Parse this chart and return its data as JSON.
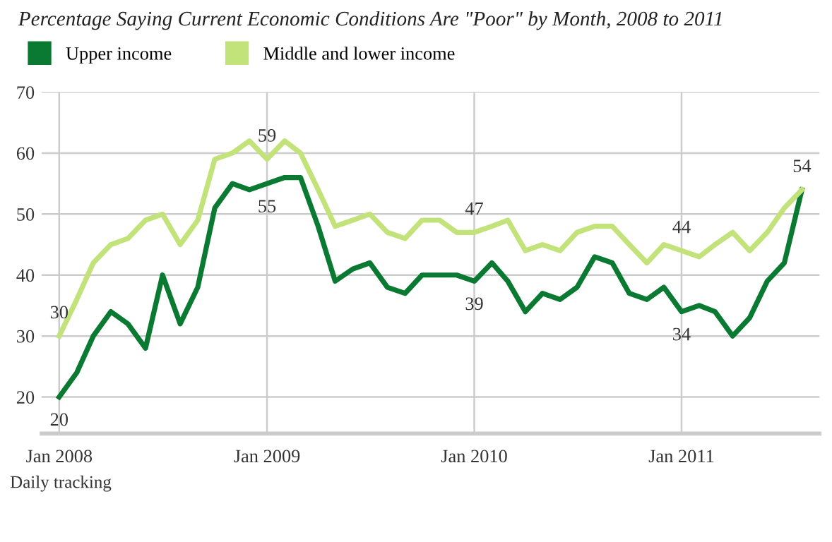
{
  "chart_data": {
    "type": "line",
    "title": "Percentage Saying Current Economic Conditions Are \"Poor\" by Month, 2008 to 2011",
    "x": [
      "2008-01",
      "2008-02",
      "2008-03",
      "2008-04",
      "2008-05",
      "2008-06",
      "2008-07",
      "2008-08",
      "2008-09",
      "2008-10",
      "2008-11",
      "2008-12",
      "2009-01",
      "2009-02",
      "2009-03",
      "2009-04",
      "2009-05",
      "2009-06",
      "2009-07",
      "2009-08",
      "2009-09",
      "2009-10",
      "2009-11",
      "2009-12",
      "2010-01",
      "2010-02",
      "2010-03",
      "2010-04",
      "2010-05",
      "2010-06",
      "2010-07",
      "2010-08",
      "2010-09",
      "2010-10",
      "2010-11",
      "2010-12",
      "2011-01",
      "2011-02",
      "2011-03",
      "2011-04",
      "2011-05",
      "2011-06",
      "2011-07",
      "2011-08"
    ],
    "series": [
      {
        "name": "Upper income",
        "color": "#0a7a32",
        "values": [
          20,
          24,
          30,
          34,
          32,
          28,
          40,
          32,
          38,
          51,
          55,
          54,
          55,
          56,
          56,
          48,
          39,
          41,
          42,
          38,
          37,
          40,
          40,
          40,
          39,
          42,
          39,
          34,
          37,
          36,
          38,
          43,
          42,
          37,
          36,
          38,
          34,
          35,
          34,
          30,
          33,
          39,
          42,
          54
        ]
      },
      {
        "name": "Middle and lower income",
        "color": "#c2e27a",
        "values": [
          30,
          36,
          42,
          45,
          46,
          49,
          50,
          45,
          49,
          59,
          60,
          62,
          59,
          62,
          60,
          54,
          48,
          49,
          50,
          47,
          46,
          49,
          49,
          47,
          47,
          48,
          49,
          44,
          45,
          44,
          47,
          48,
          48,
          45,
          42,
          45,
          44,
          43,
          45,
          47,
          44,
          47,
          51,
          54
        ]
      }
    ],
    "xlim": [
      "2007-12-01",
      "2011-09-01"
    ],
    "xticks": [
      {
        "value": "2008-01",
        "label": "Jan 2008"
      },
      {
        "value": "2009-01",
        "label": "Jan 2009"
      },
      {
        "value": "2010-01",
        "label": "Jan 2010"
      },
      {
        "value": "2011-01",
        "label": "Jan 2011"
      }
    ],
    "ylim": [
      14,
      70
    ],
    "yticks": [
      20,
      30,
      40,
      50,
      60,
      70
    ],
    "grid": true,
    "legend": "top left",
    "marker": "none",
    "line_style": "solid",
    "annotations": [
      {
        "text": "20",
        "x": "2008-01",
        "y": 20
      },
      {
        "text": "30",
        "x": "2008-01",
        "y": 30
      },
      {
        "text": "59",
        "x": "2009-01",
        "y": 59
      },
      {
        "text": "55",
        "x": "2009-01",
        "y": 55
      },
      {
        "text": "47",
        "x": "2010-01",
        "y": 47
      },
      {
        "text": "39",
        "x": "2010-01",
        "y": 39
      },
      {
        "text": "44",
        "x": "2011-01",
        "y": 44
      },
      {
        "text": "34",
        "x": "2011-01",
        "y": 34
      },
      {
        "text": "54",
        "x": "2011-08",
        "y": 54
      },
      "Daily tracking"
    ]
  }
}
